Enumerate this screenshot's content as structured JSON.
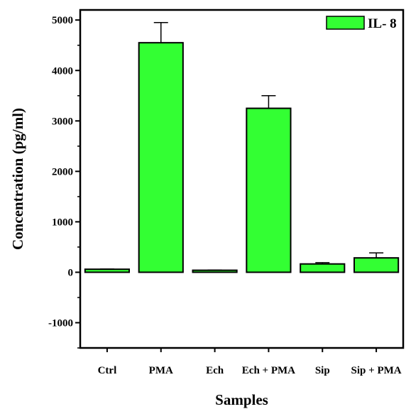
{
  "chart_data": {
    "type": "bar",
    "title": "",
    "xlabel": "Samples",
    "ylabel": "Concentration (pg/ml)",
    "categories": [
      "Ctrl",
      "PMA",
      "Ech",
      "Ech + PMA",
      "Sip",
      "Sip + PMA"
    ],
    "series": [
      {
        "name": "IL- 8",
        "values": [
          60,
          4550,
          40,
          3250,
          165,
          285
        ],
        "errors": [
          5,
          400,
          5,
          250,
          25,
          100
        ]
      }
    ],
    "ylim": [
      -1500,
      5200
    ],
    "yticks": [
      -1000,
      0,
      1000,
      2000,
      3000,
      4000,
      5000
    ],
    "grid": false,
    "legend_position": "top-right",
    "bar_color": "#33ff33"
  }
}
